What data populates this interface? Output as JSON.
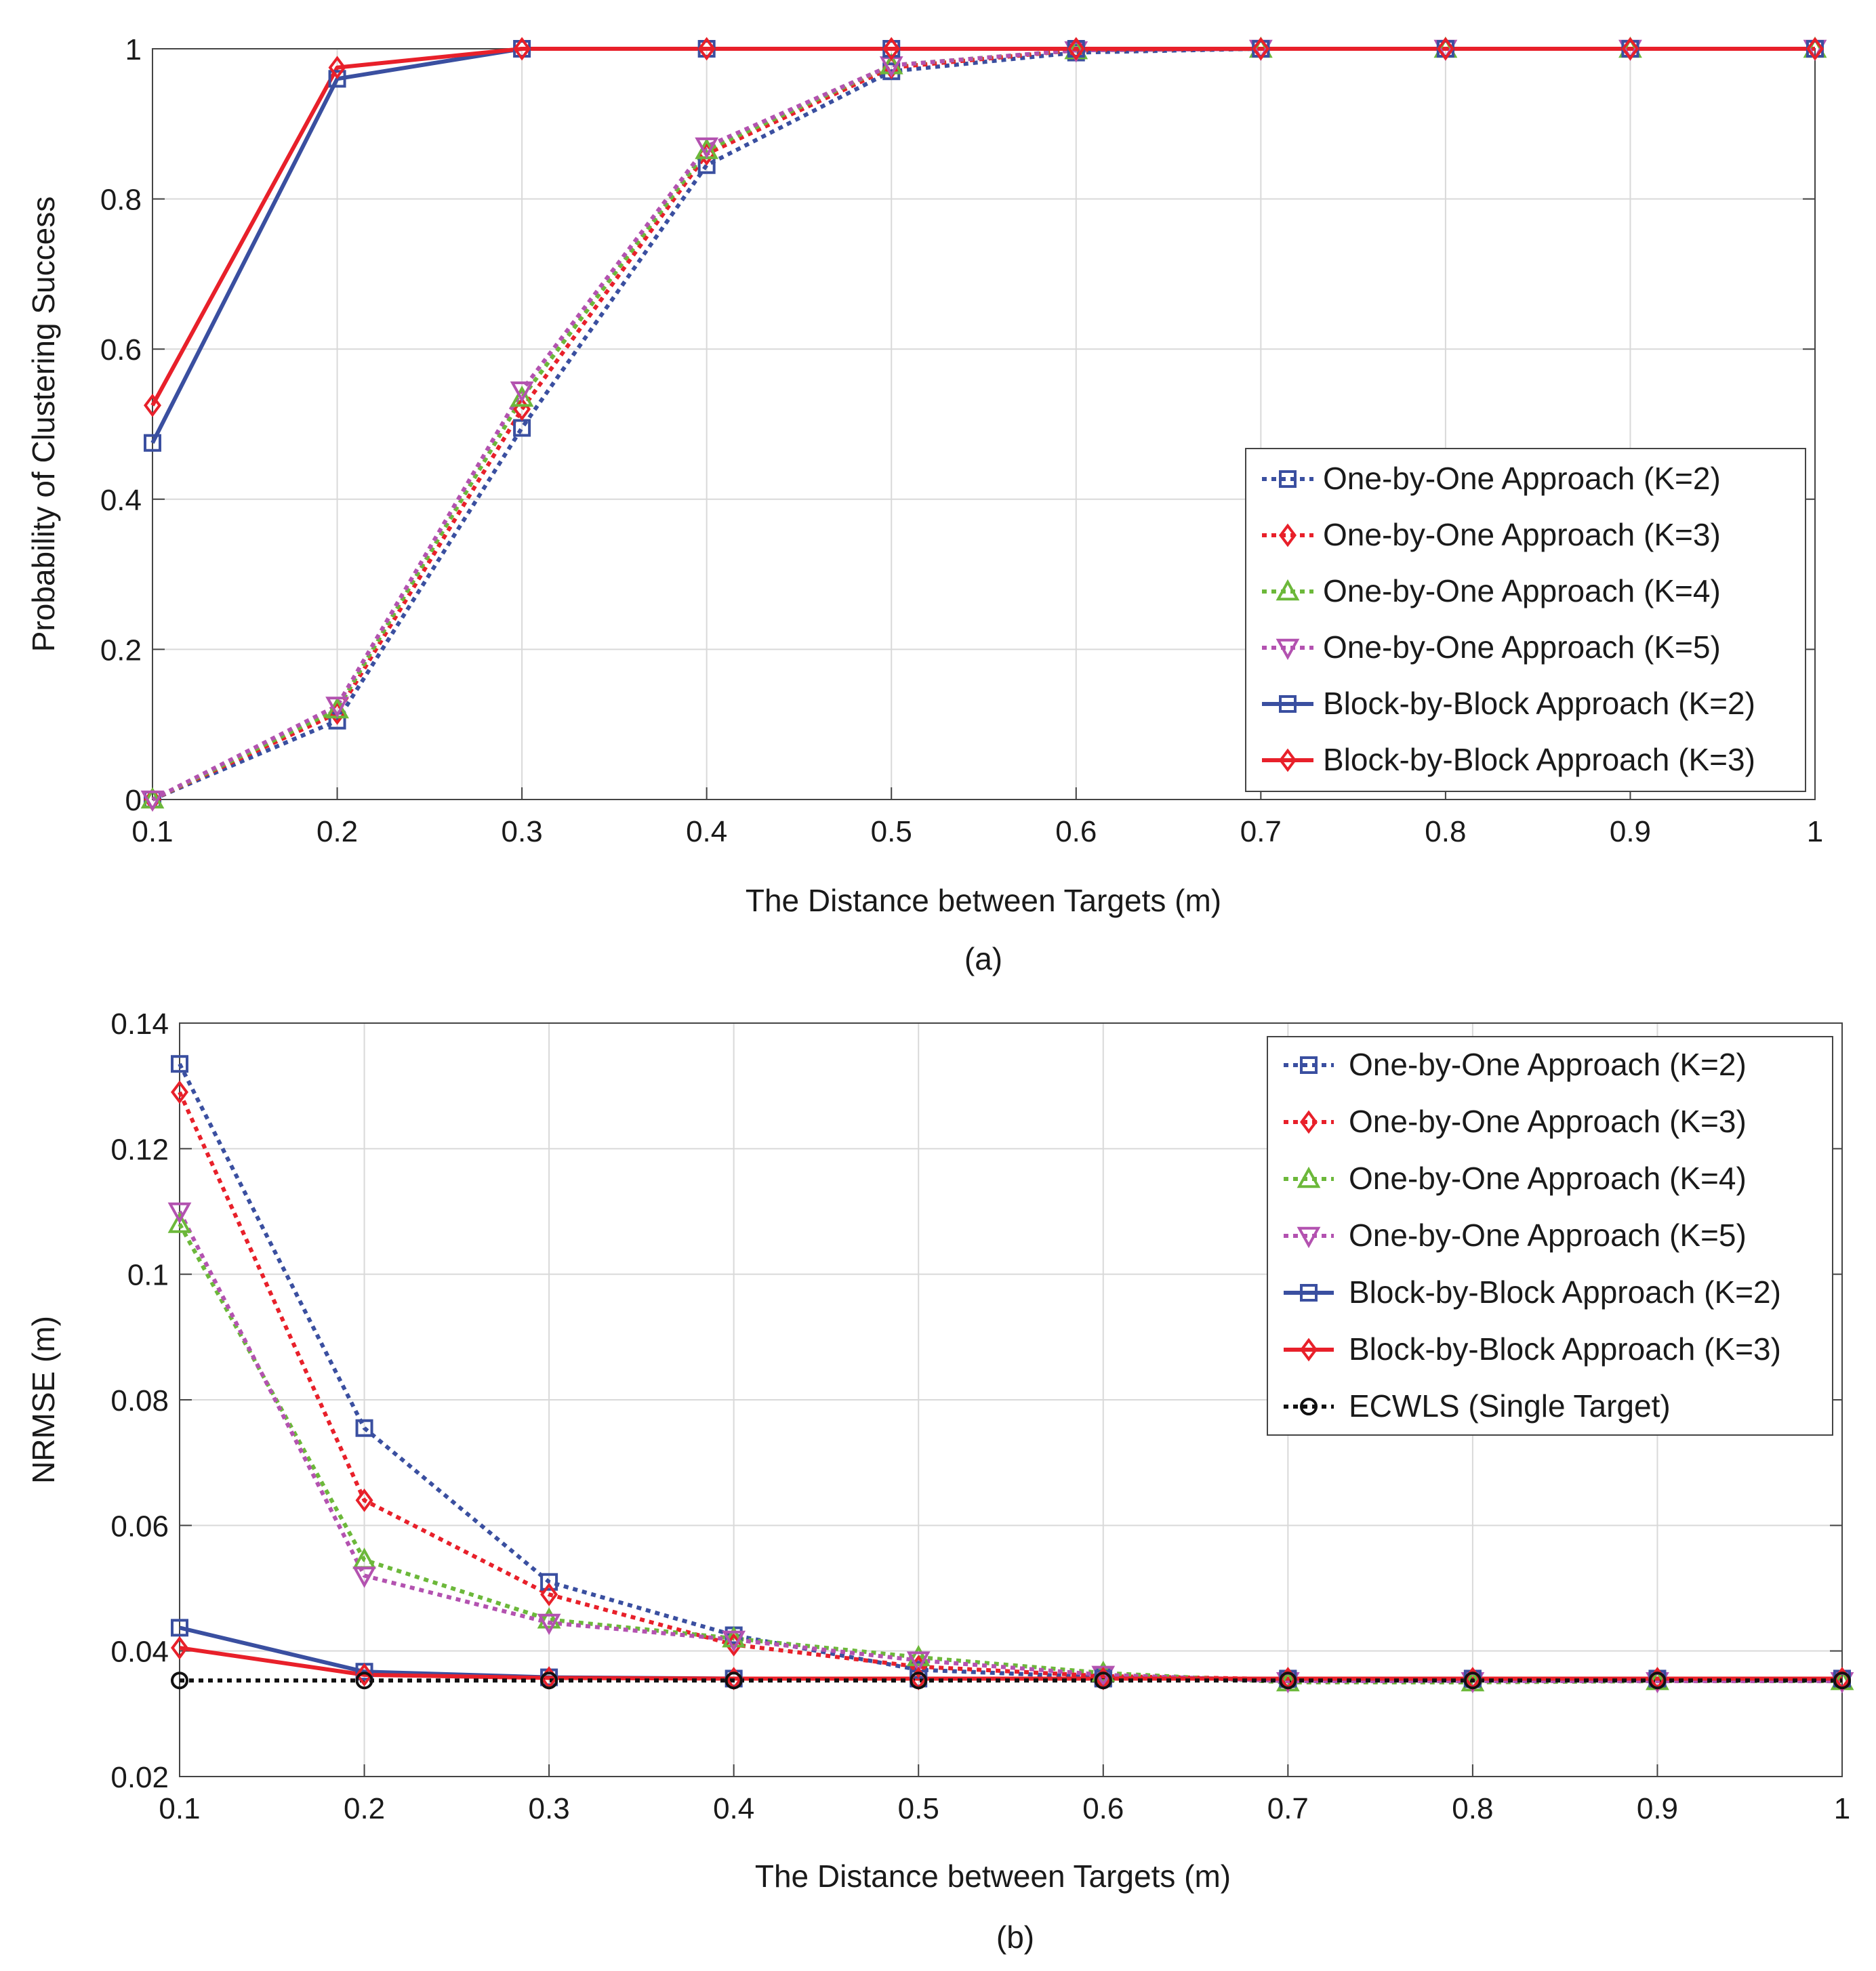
{
  "colors": {
    "blue": "#3a4fa0",
    "red": "#e8202a",
    "green": "#6cb83a",
    "magenta": "#b352b0",
    "black": "#111111",
    "grid": "#d9d9d9",
    "axis": "#444444"
  },
  "chart_data": [
    {
      "id": "a",
      "type": "line",
      "caption": "(a)",
      "xlabel": "The Distance between Targets (m)",
      "ylabel": "Probability of Clustering Success",
      "xlim": [
        0.1,
        1
      ],
      "ylim": [
        0,
        1
      ],
      "x": [
        0.1,
        0.2,
        0.3,
        0.4,
        0.5,
        0.6,
        0.7,
        0.8,
        0.9,
        1
      ],
      "xticks": [
        "0.1",
        "0.2",
        "0.3",
        "0.4",
        "0.5",
        "0.6",
        "0.7",
        "0.8",
        "0.9",
        "1"
      ],
      "yticks": [
        {
          "v": 0,
          "label": "0"
        },
        {
          "v": 0.2,
          "label": "0.2"
        },
        {
          "v": 0.4,
          "label": "0.4"
        },
        {
          "v": 0.6,
          "label": "0.6"
        },
        {
          "v": 0.8,
          "label": "0.8"
        },
        {
          "v": 1,
          "label": "1"
        }
      ],
      "grid": true,
      "legend_position": "lower-right",
      "series": [
        {
          "name": "One-by-One Approach (K=2)",
          "color": "blue",
          "dash": "dotted",
          "marker": "square",
          "values": [
            0,
            0.105,
            0.495,
            0.845,
            0.97,
            0.995,
            1,
            1,
            1,
            1
          ]
        },
        {
          "name": "One-by-One Approach (K=3)",
          "color": "red",
          "dash": "dotted",
          "marker": "diamond",
          "values": [
            0,
            0.115,
            0.52,
            0.86,
            0.975,
            0.998,
            1,
            1,
            1,
            1
          ]
        },
        {
          "name": "One-by-One Approach (K=4)",
          "color": "green",
          "dash": "dotted",
          "marker": "triangle-up",
          "values": [
            0,
            0.12,
            0.535,
            0.865,
            0.978,
            0.998,
            1,
            1,
            1,
            1
          ]
        },
        {
          "name": "One-by-One Approach (K=5)",
          "color": "magenta",
          "dash": "dotted",
          "marker": "triangle-down",
          "values": [
            0,
            0.125,
            0.545,
            0.87,
            0.978,
            0.998,
            1,
            1,
            1,
            1
          ]
        },
        {
          "name": "Block-by-Block Approach (K=2)",
          "color": "blue",
          "dash": "solid",
          "marker": "square",
          "values": [
            0.475,
            0.96,
            1,
            1,
            1,
            1,
            1,
            1,
            1,
            1
          ]
        },
        {
          "name": "Block-by-Block Approach (K=3)",
          "color": "red",
          "dash": "solid",
          "marker": "diamond",
          "values": [
            0.525,
            0.975,
            1,
            1,
            1,
            1,
            1,
            1,
            1,
            1
          ]
        }
      ]
    },
    {
      "id": "b",
      "type": "line",
      "caption": "(b)",
      "xlabel": "The Distance between Targets (m)",
      "ylabel": "NRMSE (m)",
      "xlim": [
        0.1,
        1
      ],
      "ylim": [
        0.02,
        0.14
      ],
      "x": [
        0.1,
        0.2,
        0.3,
        0.4,
        0.5,
        0.6,
        0.7,
        0.8,
        0.9,
        1
      ],
      "xticks": [
        "0.1",
        "0.2",
        "0.3",
        "0.4",
        "0.5",
        "0.6",
        "0.7",
        "0.8",
        "0.9",
        "1"
      ],
      "yticks": [
        {
          "v": 0.02,
          "label": "0.02"
        },
        {
          "v": 0.04,
          "label": "0.04"
        },
        {
          "v": 0.06,
          "label": "0.06"
        },
        {
          "v": 0.08,
          "label": "0.08"
        },
        {
          "v": 0.1,
          "label": "0.1"
        },
        {
          "v": 0.12,
          "label": "0.12"
        },
        {
          "v": 0.14,
          "label": "0.14"
        }
      ],
      "grid": true,
      "legend_position": "upper-right",
      "series": [
        {
          "name": "One-by-One Approach (K=2)",
          "color": "blue",
          "dash": "dotted",
          "marker": "square",
          "values": [
            0.1335,
            0.0755,
            0.051,
            0.0425,
            0.037,
            0.0358,
            0.0355,
            0.0355,
            0.0355,
            0.0355
          ]
        },
        {
          "name": "One-by-One Approach (K=3)",
          "color": "red",
          "dash": "dotted",
          "marker": "diamond",
          "values": [
            0.129,
            0.064,
            0.049,
            0.041,
            0.0375,
            0.036,
            0.0355,
            0.0355,
            0.0355,
            0.0355
          ]
        },
        {
          "name": "One-by-One Approach (K=4)",
          "color": "green",
          "dash": "dotted",
          "marker": "triangle-up",
          "values": [
            0.108,
            0.0545,
            0.045,
            0.042,
            0.039,
            0.0365,
            0.035,
            0.035,
            0.0352,
            0.0352
          ]
        },
        {
          "name": "One-by-One Approach (K=5)",
          "color": "magenta",
          "dash": "dotted",
          "marker": "triangle-down",
          "values": [
            0.11,
            0.052,
            0.0445,
            0.0418,
            0.0385,
            0.0362,
            0.0352,
            0.0352,
            0.0352,
            0.0352
          ]
        },
        {
          "name": "Block-by-Block Approach (K=2)",
          "color": "blue",
          "dash": "solid",
          "marker": "square",
          "values": [
            0.0437,
            0.0367,
            0.0358,
            0.0356,
            0.0356,
            0.0356,
            0.0356,
            0.0356,
            0.0356,
            0.0356
          ]
        },
        {
          "name": "Block-by-Block Approach (K=3)",
          "color": "red",
          "dash": "solid",
          "marker": "diamond",
          "values": [
            0.0405,
            0.0362,
            0.0357,
            0.0356,
            0.0356,
            0.0356,
            0.0356,
            0.0356,
            0.0356,
            0.0356
          ]
        },
        {
          "name": "ECWLS (Single Target)",
          "color": "black",
          "dash": "dotted",
          "marker": "circle",
          "values": [
            0.0353,
            0.0353,
            0.0353,
            0.0353,
            0.0353,
            0.0353,
            0.0353,
            0.0353,
            0.0353,
            0.0353
          ]
        }
      ]
    }
  ]
}
